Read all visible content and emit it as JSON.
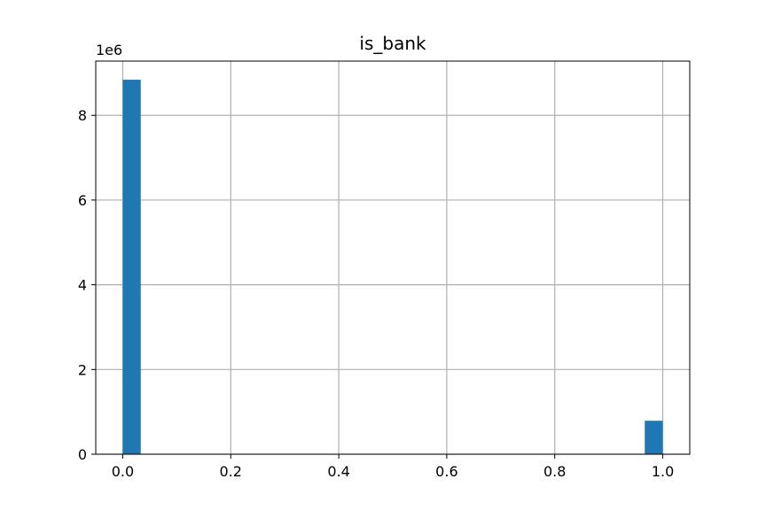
{
  "chart_data": {
    "type": "bar",
    "title": "is_bank",
    "xlabel": "",
    "ylabel": "",
    "y_offset_label": "1e6",
    "x_ticks": [
      "0.0",
      "0.2",
      "0.4",
      "0.6",
      "0.8",
      "1.0"
    ],
    "y_ticks": [
      "0",
      "2",
      "4",
      "6",
      "8"
    ],
    "xlim": [
      -0.05,
      1.05
    ],
    "ylim": [
      0,
      9.28
    ],
    "bin_count": 30,
    "bars": [
      {
        "x": [
          0.0,
          0.0333
        ],
        "value": 8.84
      },
      {
        "x": [
          0.9667,
          1.0
        ],
        "value": 0.79
      }
    ],
    "grid": true,
    "legend": "none",
    "colors": {
      "bar": "#1f77b4",
      "grid": "#b0b0b0",
      "axes": "#000000"
    }
  }
}
